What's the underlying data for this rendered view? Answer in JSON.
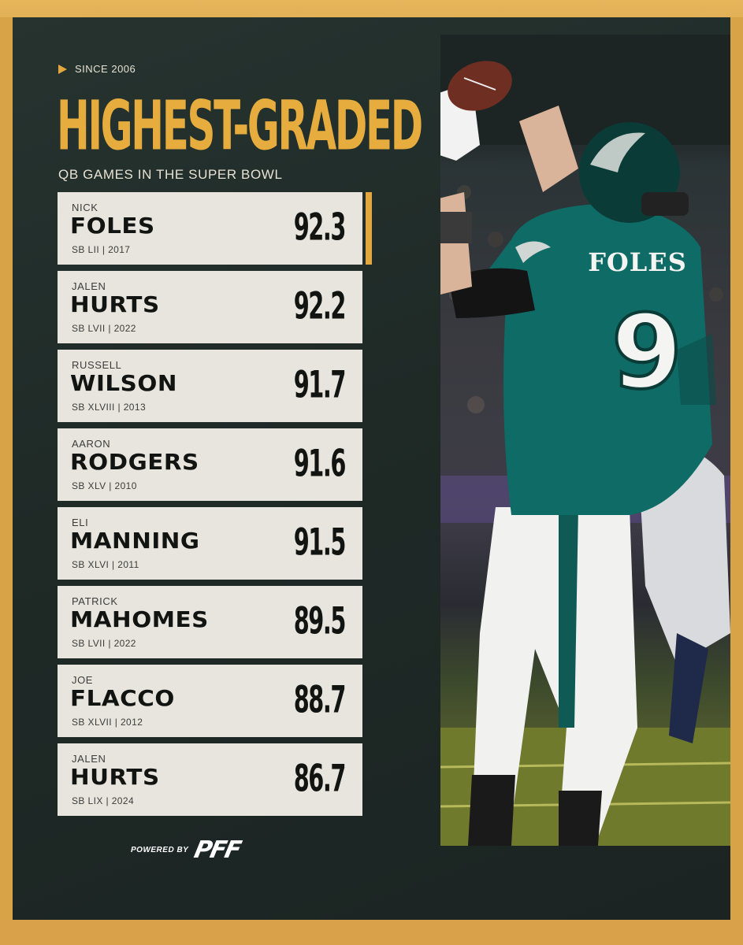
{
  "header": {
    "kicker": "SINCE 2006",
    "title": "HIGHEST-GRADED",
    "subtitle": "QB GAMES IN THE SUPER BOWL"
  },
  "rows": [
    {
      "first": "NICK",
      "last": "FOLES",
      "game": "SB LII | 2017",
      "grade": "92.3"
    },
    {
      "first": "JALEN",
      "last": "HURTS",
      "game": "SB LVII | 2022",
      "grade": "92.2"
    },
    {
      "first": "RUSSELL",
      "last": "WILSON",
      "game": "SB XLVIII | 2013",
      "grade": "91.7"
    },
    {
      "first": "AARON",
      "last": "RODGERS",
      "game": "SB XLV | 2010",
      "grade": "91.6"
    },
    {
      "first": "ELI",
      "last": "MANNING",
      "game": "SB XLVI | 2011",
      "grade": "91.5"
    },
    {
      "first": "PATRICK",
      "last": "MAHOMES",
      "game": "SB LVII | 2022",
      "grade": "89.5"
    },
    {
      "first": "JOE",
      "last": "FLACCO",
      "game": "SB XLVII | 2012",
      "grade": "88.7"
    },
    {
      "first": "JALEN",
      "last": "HURTS",
      "game": "SB LIX | 2024",
      "grade": "86.7"
    }
  ],
  "footer": {
    "powered_by": "POWERED BY",
    "logo": "PFF"
  },
  "photo": {
    "jersey_name": "FOLES",
    "jersey_number": "9"
  },
  "colors": {
    "accent": "#e2a73e",
    "background": "#1f2a27",
    "row_bg": "#e8e5de",
    "jersey": "#0f6b66"
  }
}
